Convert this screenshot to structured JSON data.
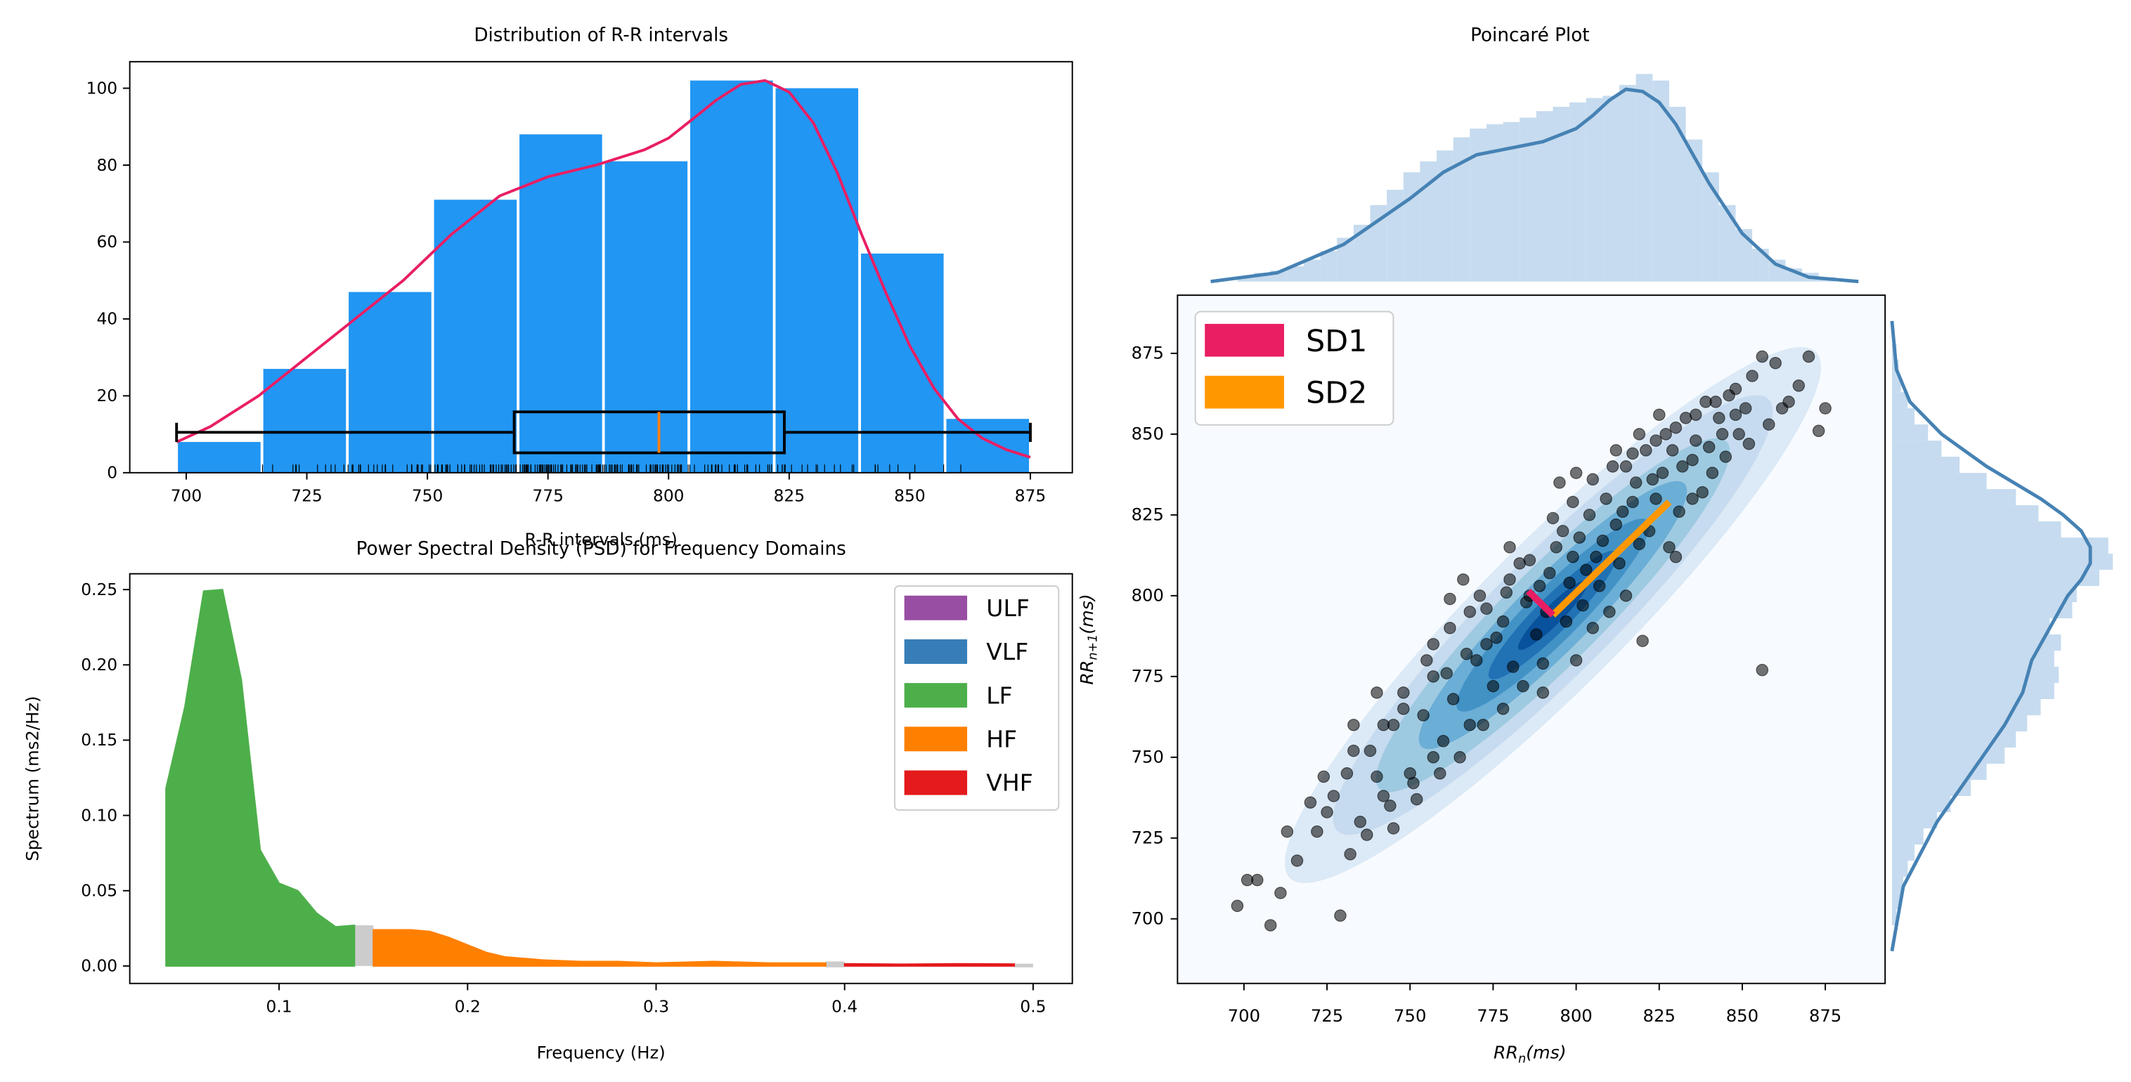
{
  "colors": {
    "hist_bar": "#2196F3",
    "kde_line": "#E91E63",
    "ulf": "#984EA3",
    "vlf": "#377EB8",
    "lf": "#4DAF4A",
    "hf": "#FF7F00",
    "vhf": "#E41A1C",
    "sd1": "#E91E63",
    "sd2": "#FF9800",
    "marginal": "#4682B4",
    "marginal_fill": "#C6DBEF"
  },
  "chart_data": [
    {
      "type": "bar",
      "title": "Distribution of R-R intervals",
      "xlabel": "R-R intervals (ms)",
      "ylabel": "",
      "xlim": [
        688.3,
        883.7
      ],
      "ylim": [
        0,
        106.9
      ],
      "xticks": [
        "700",
        "725",
        "750",
        "775",
        "800",
        "825",
        "850",
        "875"
      ],
      "yticks": [
        "0",
        "20",
        "40",
        "60",
        "80",
        "100"
      ],
      "bin_edges": [
        698,
        715.7,
        733.4,
        751.1,
        768.8,
        786.5,
        804.2,
        821.9,
        839.6,
        857.3,
        875
      ],
      "values": [
        8,
        27,
        47,
        71,
        88,
        81,
        102,
        100,
        57,
        14
      ],
      "kde": {
        "x": [
          698,
          705,
          715,
          725,
          735,
          745,
          755,
          765,
          775,
          785,
          795,
          800,
          805,
          810,
          815,
          820,
          825,
          830,
          835,
          840,
          845,
          850,
          855,
          860,
          865,
          870,
          875
        ],
        "y": [
          8,
          12,
          20,
          30,
          40,
          50,
          62,
          72,
          77,
          80,
          84,
          87,
          92,
          97,
          101,
          102,
          99,
          91,
          78,
          62,
          47,
          33,
          22,
          14,
          9,
          6,
          4
        ]
      },
      "boxplot": {
        "min": 698,
        "q1": 768,
        "median": 798,
        "q3": 824,
        "max": 875,
        "y": 10.5
      },
      "grid": false
    },
    {
      "type": "area",
      "title": "Power Spectral Density (PSD) for Frequency Domains",
      "xlabel": "Frequency (Hz)",
      "ylabel": "Spectrum (ms2/Hz)",
      "xlim": [
        0.0208,
        0.5208
      ],
      "ylim": [
        -0.0116,
        0.2605
      ],
      "xticks": [
        "0.1",
        "0.2",
        "0.3",
        "0.4",
        "0.5"
      ],
      "yticks": [
        "0.00",
        "0.05",
        "0.10",
        "0.15",
        "0.20",
        "0.25"
      ],
      "legend_position": "top-right",
      "series": [
        {
          "name": "ULF",
          "x": [],
          "y": []
        },
        {
          "name": "VLF",
          "x": [],
          "y": []
        },
        {
          "name": "LF",
          "x": [
            0.04,
            0.05,
            0.06,
            0.07,
            0.08,
            0.09,
            0.1,
            0.11,
            0.12,
            0.13,
            0.14
          ],
          "y": [
            0.118,
            0.172,
            0.249,
            0.25,
            0.19,
            0.077,
            0.055,
            0.05,
            0.035,
            0.026,
            0.027
          ]
        },
        {
          "name": "HF",
          "x": [
            0.15,
            0.16,
            0.17,
            0.18,
            0.19,
            0.2,
            0.21,
            0.22,
            0.24,
            0.26,
            0.28,
            0.3,
            0.33,
            0.36,
            0.39
          ],
          "y": [
            0.024,
            0.024,
            0.024,
            0.023,
            0.019,
            0.014,
            0.009,
            0.006,
            0.004,
            0.003,
            0.003,
            0.002,
            0.003,
            0.002,
            0.002
          ]
        },
        {
          "name": "VHF",
          "x": [
            0.4,
            0.43,
            0.46,
            0.49
          ],
          "y": [
            0.0015,
            0.0012,
            0.0015,
            0.0013
          ]
        }
      ],
      "grid": false
    },
    {
      "type": "scatter",
      "title": "Poincaré Plot",
      "xlabel": "RRn(ms)",
      "ylabel": "RRn+1(ms)",
      "xlim": [
        680,
        893
      ],
      "ylim": [
        680,
        893
      ],
      "xticks": [
        "700",
        "725",
        "750",
        "775",
        "800",
        "825",
        "850",
        "875"
      ],
      "yticks": [
        "700",
        "725",
        "750",
        "775",
        "800",
        "825",
        "850",
        "875"
      ],
      "legend": [
        "SD1",
        "SD2"
      ],
      "legend_position": "top-left",
      "center": [
        793,
        794
      ],
      "sd1": 10.5,
      "sd2": 55,
      "points": [
        [
          698,
          704
        ],
        [
          701,
          712
        ],
        [
          704,
          712
        ],
        [
          708,
          698
        ],
        [
          711,
          708
        ],
        [
          713,
          727
        ],
        [
          729,
          701
        ],
        [
          722,
          727
        ],
        [
          716,
          718
        ],
        [
          725,
          733
        ],
        [
          733,
          752
        ],
        [
          740,
          744
        ],
        [
          745,
          760
        ],
        [
          748,
          770
        ],
        [
          755,
          780
        ],
        [
          757,
          775
        ],
        [
          762,
          790
        ],
        [
          768,
          795
        ],
        [
          771,
          800
        ],
        [
          773,
          785
        ],
        [
          778,
          792
        ],
        [
          780,
          805
        ],
        [
          783,
          810
        ],
        [
          786,
          800
        ],
        [
          789,
          803
        ],
        [
          791,
          795
        ],
        [
          794,
          815
        ],
        [
          796,
          820
        ],
        [
          799,
          812
        ],
        [
          801,
          818
        ],
        [
          804,
          825
        ],
        [
          806,
          812
        ],
        [
          809,
          830
        ],
        [
          812,
          822
        ],
        [
          815,
          840
        ],
        [
          818,
          835
        ],
        [
          821,
          845
        ],
        [
          824,
          830
        ],
        [
          827,
          850
        ],
        [
          829,
          845
        ],
        [
          833,
          855
        ],
        [
          836,
          848
        ],
        [
          839,
          860
        ],
        [
          843,
          855
        ],
        [
          846,
          862
        ],
        [
          849,
          850
        ],
        [
          853,
          868
        ],
        [
          856,
          874
        ],
        [
          860,
          872
        ],
        [
          864,
          860
        ],
        [
          867,
          865
        ],
        [
          870,
          874
        ],
        [
          875,
          858
        ],
        [
          873,
          851
        ],
        [
          856,
          777
        ],
        [
          820,
          786
        ],
        [
          830,
          812
        ],
        [
          838,
          832
        ],
        [
          805,
          790
        ],
        [
          790,
          779
        ],
        [
          775,
          772
        ],
        [
          760,
          755
        ],
        [
          750,
          745
        ],
        [
          742,
          738
        ],
        [
          735,
          730
        ],
        [
          727,
          738
        ],
        [
          731,
          745
        ],
        [
          738,
          752
        ],
        [
          744,
          735
        ],
        [
          751,
          742
        ],
        [
          757,
          750
        ],
        [
          763,
          768
        ],
        [
          768,
          760
        ],
        [
          770,
          780
        ],
        [
          776,
          787
        ],
        [
          781,
          778
        ],
        [
          785,
          798
        ],
        [
          792,
          807
        ],
        [
          798,
          804
        ],
        [
          803,
          808
        ],
        [
          808,
          817
        ],
        [
          814,
          826
        ],
        [
          817,
          829
        ],
        [
          823,
          836
        ],
        [
          826,
          838
        ],
        [
          832,
          840
        ],
        [
          835,
          842
        ],
        [
          840,
          846
        ],
        [
          844,
          850
        ],
        [
          848,
          856
        ],
        [
          851,
          858
        ],
        [
          757,
          785
        ],
        [
          762,
          799
        ],
        [
          766,
          805
        ],
        [
          780,
          815
        ],
        [
          795,
          835
        ],
        [
          800,
          838
        ],
        [
          812,
          845
        ],
        [
          819,
          850
        ],
        [
          825,
          856
        ],
        [
          790,
          770
        ],
        [
          800,
          780
        ],
        [
          810,
          795
        ],
        [
          815,
          800
        ],
        [
          828,
          815
        ],
        [
          742,
          760
        ],
        [
          748,
          765
        ],
        [
          732,
          720
        ],
        [
          737,
          726
        ],
        [
          745,
          728
        ],
        [
          752,
          737
        ],
        [
          759,
          745
        ],
        [
          765,
          750
        ],
        [
          772,
          760
        ],
        [
          778,
          765
        ],
        [
          784,
          772
        ],
        [
          788,
          788
        ],
        [
          797,
          792
        ],
        [
          802,
          797
        ],
        [
          807,
          803
        ],
        [
          813,
          810
        ],
        [
          819,
          816
        ],
        [
          822,
          820
        ],
        [
          831,
          826
        ],
        [
          835,
          830
        ],
        [
          841,
          838
        ],
        [
          845,
          843
        ],
        [
          852,
          847
        ],
        [
          858,
          853
        ],
        [
          862,
          858
        ],
        [
          724,
          744
        ],
        [
          720,
          736
        ],
        [
          733,
          760
        ],
        [
          740,
          770
        ],
        [
          754,
          763
        ],
        [
          761,
          776
        ],
        [
          767,
          782
        ],
        [
          773,
          796
        ],
        [
          779,
          801
        ],
        [
          786,
          811
        ],
        [
          793,
          824
        ],
        [
          799,
          829
        ],
        [
          805,
          836
        ],
        [
          811,
          840
        ],
        [
          817,
          844
        ],
        [
          824,
          848
        ],
        [
          830,
          852
        ],
        [
          836,
          856
        ],
        [
          842,
          860
        ],
        [
          848,
          864
        ]
      ],
      "marginal_x": {
        "hist_x": [
          698,
          703,
          708,
          713,
          718,
          723,
          728,
          733,
          738,
          743,
          748,
          753,
          758,
          763,
          768,
          773,
          778,
          783,
          788,
          793,
          798,
          803,
          808,
          813,
          818,
          823,
          828,
          833,
          838,
          843,
          848,
          853,
          858,
          863,
          868,
          873
        ],
        "hist_y": [
          0.02,
          0.04,
          0.05,
          0.07,
          0.1,
          0.14,
          0.2,
          0.26,
          0.35,
          0.42,
          0.5,
          0.55,
          0.6,
          0.66,
          0.7,
          0.72,
          0.73,
          0.75,
          0.78,
          0.8,
          0.82,
          0.84,
          0.85,
          0.9,
          0.95,
          0.92,
          0.8,
          0.65,
          0.5,
          0.35,
          0.24,
          0.15,
          0.1,
          0.06,
          0.04,
          0.02
        ],
        "kde_x": [
          690,
          710,
          730,
          750,
          760,
          770,
          780,
          790,
          800,
          805,
          810,
          815,
          820,
          825,
          830,
          840,
          850,
          860,
          870,
          885
        ],
        "kde_y": [
          0.0,
          0.04,
          0.17,
          0.38,
          0.5,
          0.58,
          0.61,
          0.64,
          0.7,
          0.76,
          0.83,
          0.88,
          0.87,
          0.82,
          0.72,
          0.45,
          0.22,
          0.08,
          0.02,
          0.0
        ]
      },
      "marginal_y": {
        "hist_y": [
          698,
          703,
          708,
          713,
          718,
          723,
          728,
          733,
          738,
          743,
          748,
          753,
          758,
          763,
          768,
          773,
          778,
          783,
          788,
          793,
          798,
          803,
          808,
          813,
          818,
          823,
          828,
          833,
          838,
          843,
          848,
          853,
          858,
          863,
          868,
          873
        ],
        "hist_x": [
          0.02,
          0.04,
          0.05,
          0.07,
          0.1,
          0.14,
          0.2,
          0.26,
          0.35,
          0.42,
          0.5,
          0.55,
          0.6,
          0.66,
          0.72,
          0.74,
          0.72,
          0.75,
          0.7,
          0.8,
          0.82,
          0.92,
          0.98,
          0.96,
          0.75,
          0.65,
          0.55,
          0.42,
          0.3,
          0.22,
          0.16,
          0.1,
          0.07,
          0.04,
          0.03,
          0.02
        ],
        "kde_y": [
          690,
          710,
          730,
          750,
          760,
          770,
          780,
          790,
          800,
          805,
          810,
          815,
          820,
          825,
          830,
          840,
          850,
          860,
          870,
          885
        ],
        "kde_x": [
          0.0,
          0.05,
          0.2,
          0.4,
          0.5,
          0.58,
          0.62,
          0.7,
          0.78,
          0.84,
          0.88,
          0.88,
          0.84,
          0.76,
          0.66,
          0.42,
          0.22,
          0.08,
          0.02,
          0.0
        ]
      }
    }
  ]
}
